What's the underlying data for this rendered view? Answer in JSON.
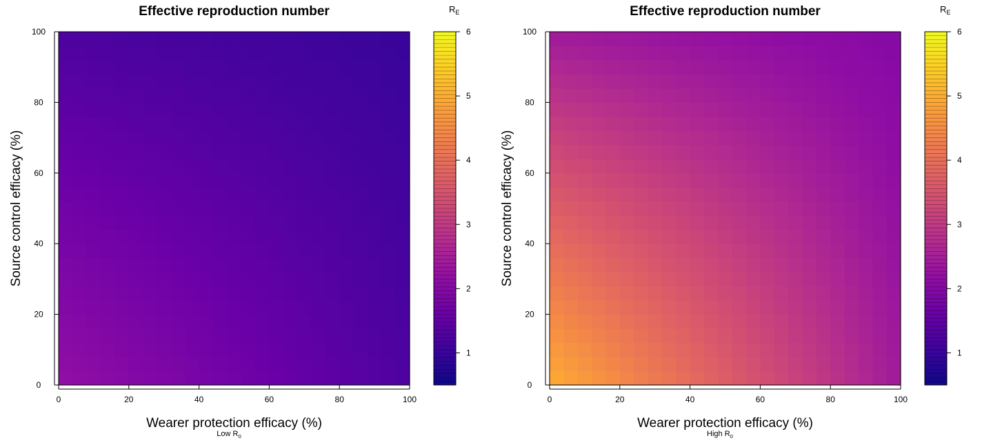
{
  "colormap_stops": [
    "#0d0887",
    "#3d049b",
    "#6a00a8",
    "#8f0da4",
    "#b12a90",
    "#cc4778",
    "#e16462",
    "#f1834b",
    "#fca636",
    "#fcce25",
    "#f0f921"
  ],
  "chart_data": [
    {
      "type": "heatmap",
      "title": "Effective reproduction number",
      "xlabel": "Wearer protection efficacy (%)",
      "ylabel": "Source control efficacy (%)",
      "caption_main": "Low R",
      "caption_sub": "0",
      "colorbar_label_main": "R",
      "colorbar_label_sub": "E",
      "xlim": [
        0,
        100
      ],
      "ylim": [
        0,
        100
      ],
      "x_ticks": [
        0,
        20,
        40,
        60,
        80,
        100
      ],
      "y_ticks": [
        0,
        20,
        40,
        60,
        80,
        100
      ],
      "color_scale": {
        "min": 0.5,
        "max": 6,
        "ticks": [
          1,
          2,
          3,
          4,
          5,
          6
        ]
      },
      "r0": 2.2,
      "z_corners": {
        "x0_y0": 2.2,
        "x100_y0": 1.25,
        "x0_y100": 1.25,
        "x100_y100": 1.0
      }
    },
    {
      "type": "heatmap",
      "title": "Effective reproduction number",
      "xlabel": "Wearer protection efficacy (%)",
      "ylabel": "Source control efficacy (%)",
      "caption_main": "High R",
      "caption_sub": "0",
      "colorbar_label_main": "R",
      "colorbar_label_sub": "E",
      "xlim": [
        0,
        100
      ],
      "ylim": [
        0,
        100
      ],
      "x_ticks": [
        0,
        20,
        40,
        60,
        80,
        100
      ],
      "y_ticks": [
        0,
        20,
        40,
        60,
        80,
        100
      ],
      "color_scale": {
        "min": 0.5,
        "max": 6,
        "ticks": [
          1,
          2,
          3,
          4,
          5,
          6
        ]
      },
      "r0": 5.0,
      "z_corners": {
        "x0_y0": 5.0,
        "x100_y0": 2.4,
        "x0_y100": 2.4,
        "x100_y100": 2.0
      }
    }
  ]
}
